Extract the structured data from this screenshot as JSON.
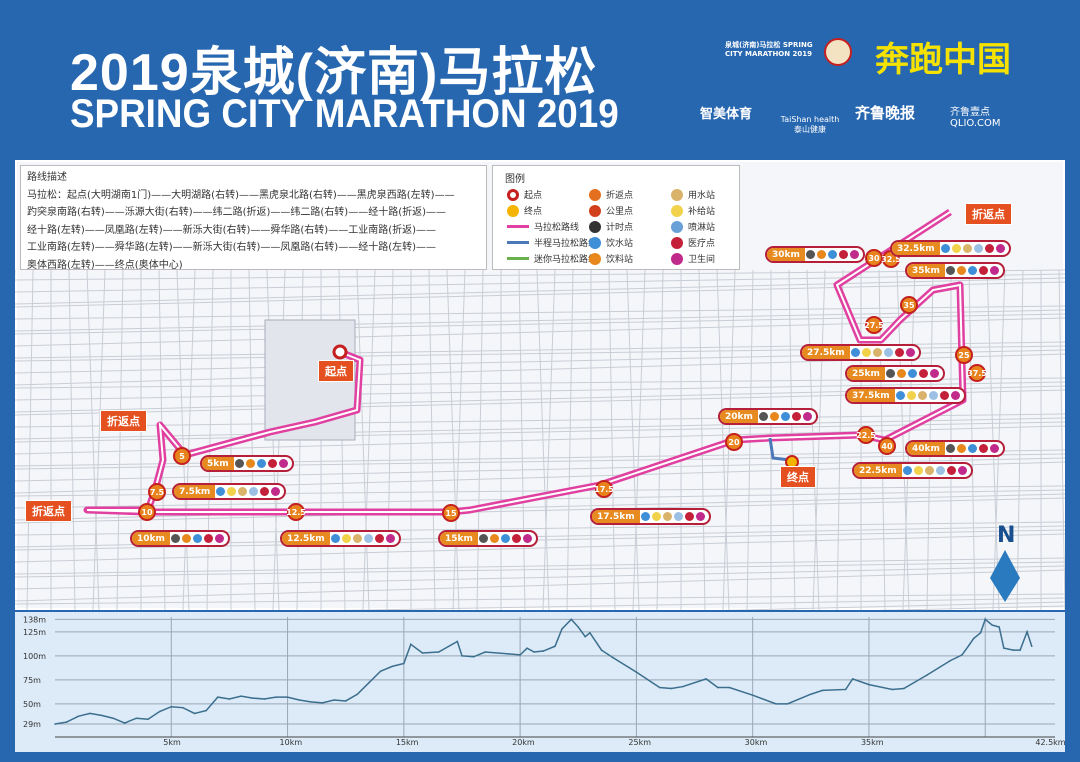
{
  "header": {
    "title_cn": "2019泉城(济南)马拉松",
    "title_en": "SPRING CITY MARATHON 2019"
  },
  "logos": {
    "marathon": "泉城(济南)马拉松 SPRING CITY MARATHON 2019",
    "run_china": "奔跑中国",
    "zhimei": "智美体育",
    "taishan": "TaiShan health 泰山健康",
    "qilu": "齐鲁晚报",
    "qlio": "齐鲁壹点 QLIO.COM"
  },
  "description": {
    "title": "路线描述",
    "lines": [
      "马拉松：起点(大明湖南1门)——大明湖路(右转)——黑虎泉北路(右转)——黑虎泉西路(左转)——",
      "趵突泉南路(右转)——泺源大街(右转)——纬二路(折返)——纬二路(右转)——经十路(折返)——",
      "经十路(左转)——凤凰路(左转)——新泺大街(右转)——舜华路(右转)——工业南路(折返)——",
      "工业南路(左转)——舜华路(左转)——新泺大街(右转)——凤凰路(右转)——经十路(左转)——",
      "奥体西路(左转)——终点(奥体中心)"
    ]
  },
  "legend": {
    "title": "图例",
    "items": [
      {
        "label": "起点",
        "icon": "start-ring",
        "color": "#c4201f"
      },
      {
        "label": "折返点",
        "icon": "u-turn-arrow",
        "color": "#e4701f"
      },
      {
        "label": "用水站",
        "icon": "water-use",
        "color": "#d9b36a"
      },
      {
        "label": "终点",
        "icon": "finish-dot",
        "color": "#f5b400"
      },
      {
        "label": "公里点",
        "icon": "km-marker",
        "color": "#d2401b"
      },
      {
        "label": "补给站",
        "icon": "supply-banana",
        "color": "#f1d24a"
      },
      {
        "label": "马拉松路线",
        "icon": "line",
        "color": "#e040a0"
      },
      {
        "label": "计时点",
        "icon": "stopwatch",
        "color": "#333333"
      },
      {
        "label": "喷淋站",
        "icon": "shower",
        "color": "#6aa0d8"
      },
      {
        "label": "半程马拉松路线",
        "icon": "line",
        "color": "#4a78b8"
      },
      {
        "label": "饮水站",
        "icon": "water-drop",
        "color": "#3f8fd8"
      },
      {
        "label": "医疗点",
        "icon": "medical-cross",
        "color": "#c4203a"
      },
      {
        "label": "迷你马拉松路线",
        "icon": "line",
        "color": "#6ab04c"
      },
      {
        "label": "饮料站",
        "icon": "drink-cup",
        "color": "#e8881c"
      },
      {
        "label": "卫生间",
        "icon": "toilet",
        "color": "#c02a8a"
      }
    ]
  },
  "map": {
    "route_color": "#e040a0",
    "start_label": "起点",
    "finish_label": "终点",
    "turnaround_label": "折返点",
    "north_label": "N",
    "km_markers": [
      "5",
      "7.5",
      "10",
      "12.5",
      "15",
      "17.5",
      "20",
      "22.5",
      "25",
      "27.5",
      "30",
      "32.5",
      "35",
      "37.5",
      "40"
    ],
    "stations": [
      {
        "km": "5km",
        "icons": [
          "stopwatch",
          "drink-cup",
          "water-drop",
          "medical-cross",
          "toilet"
        ]
      },
      {
        "km": "7.5km",
        "icons": [
          "water-drop",
          "supply-banana",
          "water-use",
          "shower",
          "medical-cross",
          "toilet"
        ]
      },
      {
        "km": "10km",
        "icons": [
          "stopwatch",
          "drink-cup",
          "water-drop",
          "medical-cross",
          "toilet"
        ]
      },
      {
        "km": "12.5km",
        "icons": [
          "water-drop",
          "supply-banana",
          "water-use",
          "shower",
          "medical-cross",
          "toilet"
        ]
      },
      {
        "km": "15km",
        "icons": [
          "stopwatch",
          "drink-cup",
          "water-drop",
          "medical-cross",
          "toilet"
        ]
      },
      {
        "km": "17.5km",
        "icons": [
          "water-drop",
          "supply-banana",
          "water-use",
          "shower",
          "medical-cross",
          "toilet"
        ]
      },
      {
        "km": "20km",
        "icons": [
          "stopwatch",
          "drink-cup",
          "water-drop",
          "medical-cross",
          "toilet"
        ]
      },
      {
        "km": "22.5km",
        "icons": [
          "water-drop",
          "supply-banana",
          "water-use",
          "shower",
          "medical-cross",
          "toilet"
        ]
      },
      {
        "km": "25km",
        "icons": [
          "stopwatch",
          "drink-cup",
          "water-drop",
          "medical-cross",
          "toilet"
        ]
      },
      {
        "km": "27.5km",
        "icons": [
          "water-drop",
          "supply-banana",
          "water-use",
          "shower",
          "medical-cross",
          "toilet"
        ]
      },
      {
        "km": "30km",
        "icons": [
          "stopwatch",
          "drink-cup",
          "water-drop",
          "medical-cross",
          "toilet"
        ]
      },
      {
        "km": "32.5km",
        "icons": [
          "water-drop",
          "supply-banana",
          "water-use",
          "shower",
          "medical-cross",
          "toilet"
        ]
      },
      {
        "km": "35km",
        "icons": [
          "stopwatch",
          "drink-cup",
          "water-drop",
          "medical-cross",
          "toilet"
        ]
      },
      {
        "km": "37.5km",
        "icons": [
          "water-drop",
          "supply-banana",
          "water-use",
          "shower",
          "medical-cross",
          "toilet"
        ]
      },
      {
        "km": "40km",
        "icons": [
          "stopwatch",
          "drink-cup",
          "water-drop",
          "medical-cross",
          "toilet"
        ]
      }
    ]
  },
  "chart_data": {
    "type": "area",
    "xlabel": "",
    "ylabel": "",
    "x_ticks": [
      "5km",
      "10km",
      "15km",
      "20km",
      "25km",
      "30km",
      "35km",
      "42.5km"
    ],
    "y_ticks": [
      "29m",
      "50m",
      "75m",
      "100m",
      "125m",
      "138m"
    ],
    "xlim": [
      0,
      43
    ],
    "ylim": [
      29,
      138
    ],
    "grid": true,
    "series": [
      {
        "x": [
          0,
          0.5,
          1,
          1.5,
          2,
          2.5,
          3,
          3.5,
          4,
          4.5,
          5,
          5.5,
          6,
          6.5,
          7,
          7.5,
          8,
          8.5,
          9,
          9.5,
          10,
          10.5,
          11,
          11.5,
          12,
          12.5,
          13,
          13.5,
          14,
          14.5,
          15,
          15.3,
          15.8,
          16.5,
          17.3,
          17.5,
          18,
          18.5,
          19.5,
          20,
          20.3,
          20.6,
          21,
          21.5,
          21.8,
          22.2,
          22.5,
          22.8,
          23,
          23.5,
          24,
          25,
          26,
          26.5,
          27,
          28,
          28.5,
          29,
          30,
          31,
          31.5,
          32.5,
          33,
          34,
          34.3,
          35,
          36,
          36.5,
          37.5,
          38.5,
          39,
          39.3,
          39.5,
          39.8,
          40,
          40.3,
          40.6,
          40.8,
          41.2,
          41.5,
          41.8,
          42
        ],
        "y": [
          29,
          31,
          37,
          40,
          38,
          35,
          30,
          35,
          34,
          42,
          47,
          46,
          40,
          43,
          57,
          55,
          58,
          56,
          55,
          57,
          57,
          54,
          52,
          51,
          54,
          53,
          60,
          72,
          84,
          89,
          92,
          112,
          103,
          104,
          115,
          100,
          99,
          104,
          102,
          101,
          108,
          104,
          105,
          110,
          128,
          138,
          130,
          120,
          124,
          106,
          98,
          83,
          67,
          66,
          68,
          76,
          67,
          67,
          59,
          50,
          50,
          60,
          64,
          65,
          76,
          70,
          65,
          66,
          80,
          95,
          101,
          111,
          118,
          124,
          138,
          132,
          130,
          108,
          106,
          106,
          125,
          110
        ]
      }
    ]
  }
}
